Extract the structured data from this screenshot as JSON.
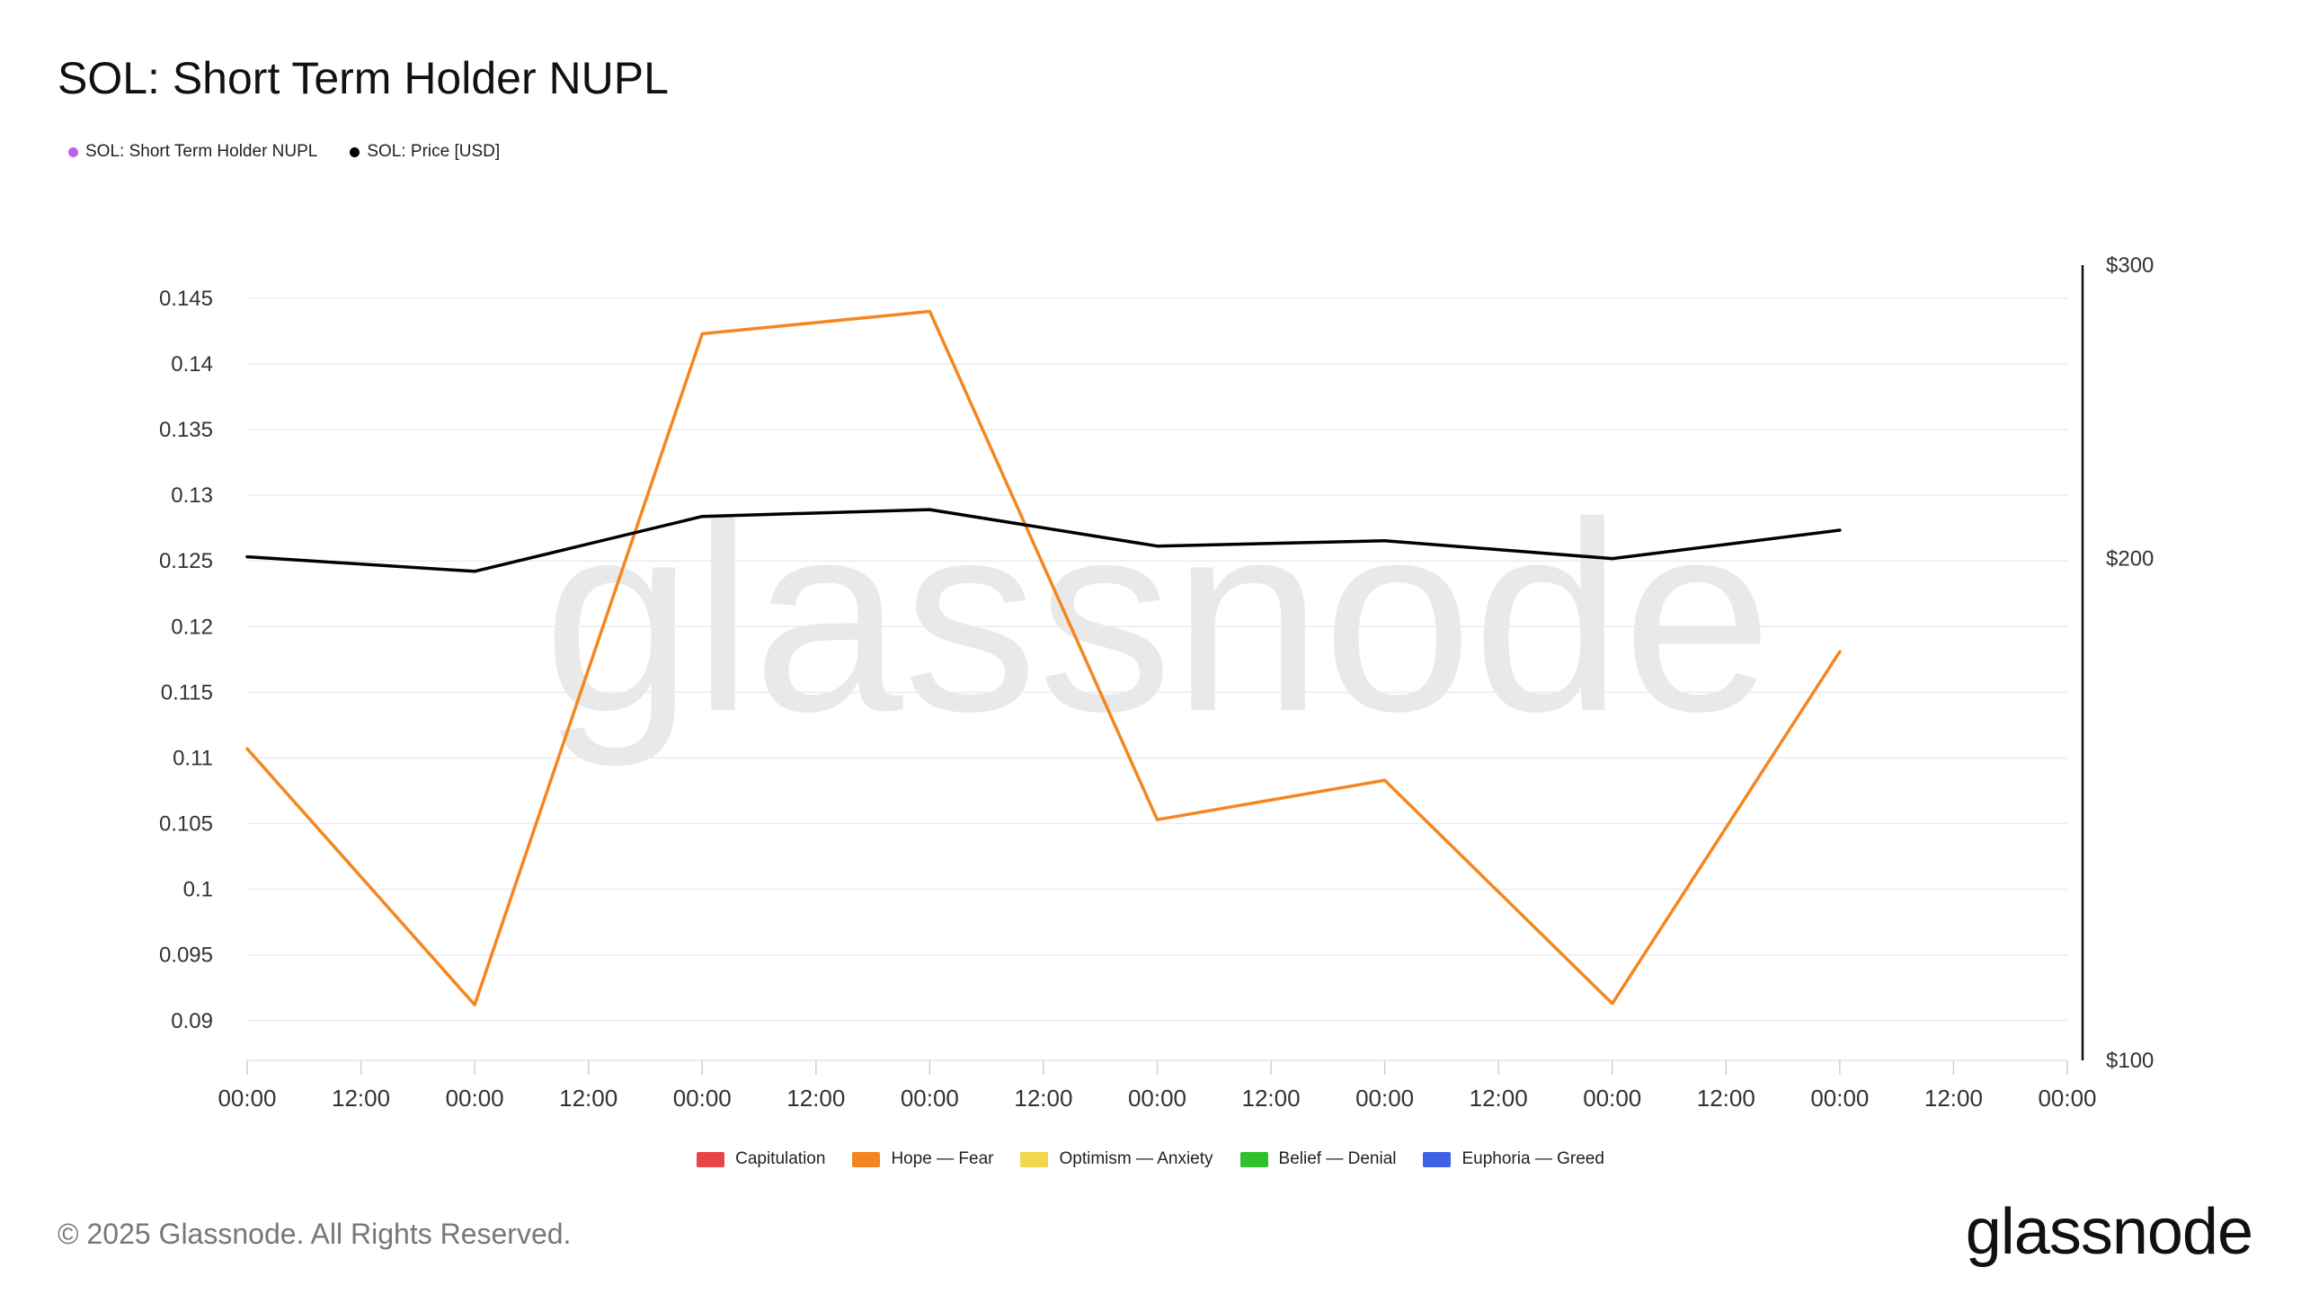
{
  "header": {
    "title": "SOL: Short Term Holder NUPL"
  },
  "top_legend": [
    {
      "label": "SOL: Short Term Holder NUPL",
      "color": "#b964e8"
    },
    {
      "label": "SOL: Price [USD]",
      "color": "#000000"
    }
  ],
  "bottom_legend": [
    {
      "label": "Capitulation",
      "color": "#e84646"
    },
    {
      "label": "Hope — Fear",
      "color": "#f5861f"
    },
    {
      "label": "Optimism — Anxiety",
      "color": "#f2d64b"
    },
    {
      "label": "Belief — Denial",
      "color": "#2ec22e"
    },
    {
      "label": "Euphoria — Greed",
      "color": "#3f61e6"
    }
  ],
  "watermark": "glassnode",
  "footer": {
    "copyright": "© 2025 Glassnode. All Rights Reserved.",
    "logo_text": "glassnode"
  },
  "chart_data": {
    "type": "line",
    "title": "SOL: Short Term Holder NUPL",
    "x_tick_labels": [
      "00:00",
      "12:00",
      "00:00",
      "12:00",
      "00:00",
      "12:00",
      "00:00",
      "12:00",
      "00:00",
      "12:00",
      "00:00",
      "12:00",
      "00:00",
      "12:00",
      "00:00",
      "12:00",
      "00:00"
    ],
    "x_range": [
      0,
      16
    ],
    "grid": true,
    "y_left": {
      "ylim": [
        0.088,
        0.1465
      ],
      "ticks": [
        0.09,
        0.095,
        0.1,
        0.105,
        0.11,
        0.115,
        0.12,
        0.125,
        0.13,
        0.135,
        0.14,
        0.145
      ]
    },
    "y_right": {
      "scale": "log",
      "ylim": [
        100,
        300
      ],
      "ticks": [
        100,
        200,
        300
      ],
      "tick_labels": [
        "$100",
        "$200",
        "$300"
      ]
    },
    "series": [
      {
        "name": "SOL: Short Term Holder NUPL",
        "axis": "left",
        "color": "#f5861f",
        "x": [
          0,
          2,
          4,
          6,
          8,
          10,
          12,
          14
        ],
        "values": [
          0.1107,
          0.0912,
          0.1423,
          0.144,
          0.1053,
          0.1083,
          0.0913,
          0.1181
        ]
      },
      {
        "name": "SOL: Price [USD]",
        "axis": "right",
        "color": "#000000",
        "x": [
          0,
          2,
          4,
          6,
          8,
          10,
          12,
          14
        ],
        "values": [
          200.5,
          196.5,
          212.0,
          214.0,
          203.5,
          205.0,
          200.0,
          208.0
        ]
      }
    ]
  }
}
